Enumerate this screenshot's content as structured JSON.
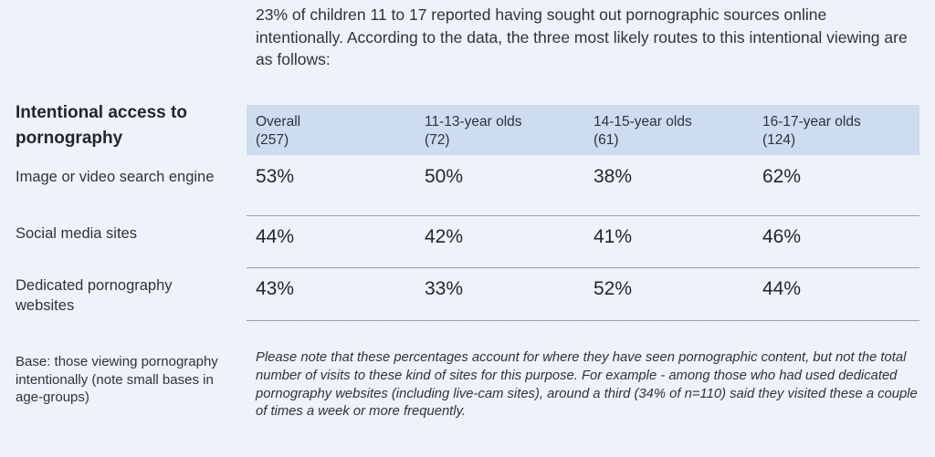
{
  "intro": "23% of children 11 to 17 reported having sought out pornographic sources online intentionally. According to the data, the three most likely routes to this intentional viewing are as follows:",
  "section_title": "Intentional access to pornography",
  "table": {
    "columns": [
      {
        "label": "Overall",
        "n": "(257)"
      },
      {
        "label": "11-13-year olds",
        "n": "(72)"
      },
      {
        "label": "14-15-year olds",
        "n": "(61)"
      },
      {
        "label": "16-17-year olds",
        "n": "(124)"
      }
    ],
    "rows": [
      {
        "label": "Image or video search engine",
        "values": [
          "53%",
          "50%",
          "38%",
          "62%"
        ]
      },
      {
        "label": "Social media sites",
        "values": [
          "44%",
          "42%",
          "41%",
          "46%"
        ]
      },
      {
        "label": "Dedicated pornography websites",
        "values": [
          "43%",
          "33%",
          "52%",
          "44%"
        ]
      }
    ]
  },
  "base_note": "Base: those viewing pornography intentionally (note small bases in age-groups)",
  "footnote": "Please note that these percentages account for where they have seen pornographic content, but not the total number of visits to these kind of sites for this purpose. For example - among those who had used dedicated pornography websites (including live-cam sites), around a third (34% of n=110) said they visited these a couple of times a week or more frequently."
}
